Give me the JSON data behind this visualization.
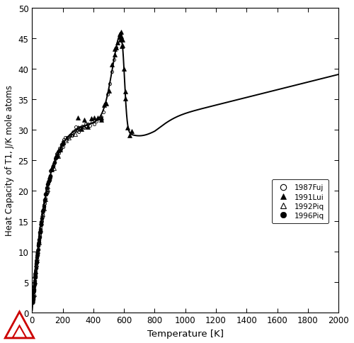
{
  "xlabel": "Temperature [K]",
  "ylabel": "Heat Capacity of T1, J/K mole atoms",
  "xlim": [
    0,
    2000
  ],
  "ylim": [
    0,
    50
  ],
  "xticks": [
    0,
    200,
    400,
    600,
    800,
    1000,
    1200,
    1400,
    1600,
    1800,
    2000
  ],
  "yticks": [
    0,
    5,
    10,
    15,
    20,
    25,
    30,
    35,
    40,
    45,
    50
  ],
  "legend_entries": [
    "1987Fuj",
    "1991Lui",
    "1992Piq",
    "1996Piq"
  ],
  "tc": 585,
  "figsize": [
    5.0,
    4.85
  ],
  "dpi": 100
}
